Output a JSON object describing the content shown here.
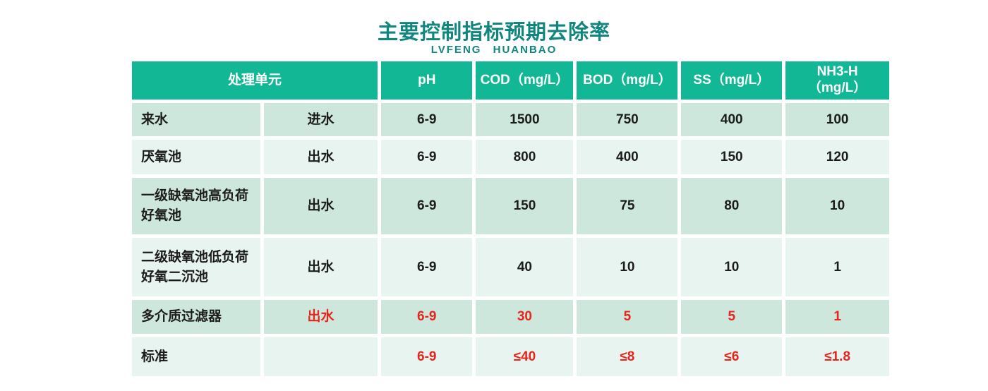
{
  "page": {
    "title": "主要控制指标预期去除率",
    "subtitle": "LVFENG HUANBAO"
  },
  "colors": {
    "teal": "#12b795",
    "row_dark": "#cde7dc",
    "row_light": "#e7f4ef",
    "title_teal": "#11867e",
    "red": "#e8251d",
    "ink": "#1c1c1c"
  },
  "table": {
    "header": {
      "unit": "处理单元",
      "ph": "pH",
      "cod": "COD（mg/L）",
      "bod": "BOD（mg/L）",
      "ss": "SS（mg/L）",
      "nh3": "NH3-H\n（mg/L）"
    },
    "rows": [
      {
        "unit": "来水",
        "flow": "进水",
        "ph": "6-9",
        "cod": "1500",
        "bod": "750",
        "ss": "400",
        "nh3": "100"
      },
      {
        "unit": "厌氧池",
        "flow": "出水",
        "ph": "6-9",
        "cod": "800",
        "bod": "400",
        "ss": "150",
        "nh3": "120"
      },
      {
        "unit": "一级缺氧池高负荷\n好氧池",
        "flow": "出水",
        "ph": "6-9",
        "cod": "150",
        "bod": "75",
        "ss": "80",
        "nh3": "10"
      },
      {
        "unit": "二级缺氧池低负荷\n好氧二沉池",
        "flow": "出水",
        "ph": "6-9",
        "cod": "40",
        "bod": "10",
        "ss": "10",
        "nh3": "1"
      },
      {
        "unit": "多介质过滤器",
        "flow": "出水",
        "ph": "6-9",
        "cod": "30",
        "bod": "5",
        "ss": "5",
        "nh3": "1"
      },
      {
        "unit": "标准",
        "flow": "",
        "ph": "6-9",
        "cod": "≤40",
        "bod": "≤8",
        "ss": "≤6",
        "nh3": "≤1.8"
      }
    ]
  }
}
